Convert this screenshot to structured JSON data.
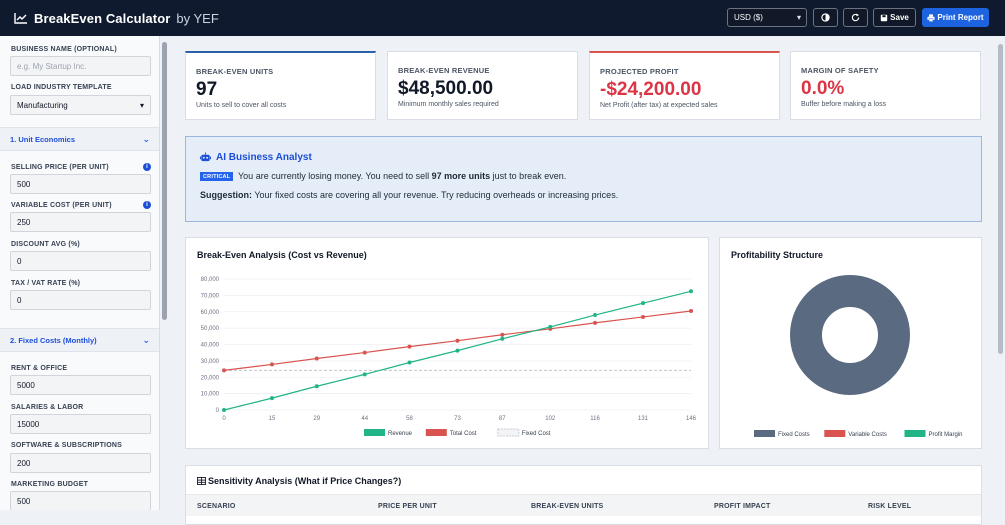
{
  "header": {
    "app_name": "BreakEven Calculator",
    "by": "by YEF",
    "currency": "USD ($)",
    "save_label": "Save",
    "print_label": "Print Report"
  },
  "sidebar": {
    "business_name_label": "BUSINESS NAME (OPTIONAL)",
    "business_name_placeholder": "e.g. My Startup Inc.",
    "template_label": "LOAD INDUSTRY TEMPLATE",
    "template_value": "Manufacturing",
    "section1": "1. Unit Economics",
    "selling_price_label": "SELLING PRICE (PER UNIT)",
    "selling_price": "500",
    "variable_cost_label": "VARIABLE COST (PER UNIT)",
    "variable_cost": "250",
    "discount_label": "DISCOUNT AVG (%)",
    "discount": "0",
    "tax_label": "TAX / VAT RATE (%)",
    "tax": "0",
    "section2": "2. Fixed Costs (Monthly)",
    "rent_label": "RENT & OFFICE",
    "rent": "5000",
    "salaries_label": "SALARIES & LABOR",
    "salaries": "15000",
    "software_label": "SOFTWARE & SUBSCRIPTIONS",
    "software": "200",
    "marketing_label": "MARKETING BUDGET",
    "marketing": "500"
  },
  "kpis": [
    {
      "label": "BREAK-EVEN UNITS",
      "value": "97",
      "sub": "Units to sell to cover all costs",
      "color": "#111827",
      "accent": "#2d5fa8"
    },
    {
      "label": "BREAK-EVEN REVENUE",
      "value": "$48,500.00",
      "sub": "Minimum monthly sales required",
      "color": "#111827",
      "accent": ""
    },
    {
      "label": "PROJECTED PROFIT",
      "value": "-$24,200.00",
      "sub": "Net Profit (after tax) at expected sales",
      "color": "#dc3545",
      "accent": "#d9534f"
    },
    {
      "label": "MARGIN OF SAFETY",
      "value": "0.0%",
      "sub": "Buffer before making a loss",
      "color": "#dc3545",
      "accent": ""
    }
  ],
  "ai": {
    "title": "AI Business Analyst",
    "badge": "CRITICAL",
    "msg_a": "You are currently losing money. You need to sell ",
    "msg_b": "97 more units",
    "msg_c": " just to break even.",
    "sug_label": "Suggestion:",
    "sug_text": " Your fixed costs are covering all your revenue. Try reducing overheads or increasing prices."
  },
  "chart_data": [
    {
      "type": "line",
      "title": "Break-Even Analysis (Cost vs Revenue)",
      "x": [
        0,
        15,
        29,
        44,
        58,
        73,
        87,
        102,
        116,
        131,
        146
      ],
      "ylim": [
        0,
        80000
      ],
      "yticks": [
        "0",
        "10,000",
        "20,000",
        "30,000",
        "40,000",
        "50,000",
        "60,000",
        "70,000",
        "80,000"
      ],
      "series": [
        {
          "name": "Revenue",
          "color": "#20b486",
          "values": [
            0,
            7250,
            14500,
            21750,
            29000,
            36250,
            43500,
            50750,
            58000,
            65250,
            72500
          ]
        },
        {
          "name": "Total Cost",
          "color": "#d9534f",
          "values": [
            24200,
            27825,
            31450,
            35075,
            38700,
            42325,
            45950,
            49575,
            53200,
            56825,
            60450
          ]
        },
        {
          "name": "Fixed Cost",
          "color": "#bfc5cc",
          "values": [
            24200,
            24200,
            24200,
            24200,
            24200,
            24200,
            24200,
            24200,
            24200,
            24200,
            24200
          ]
        }
      ],
      "grid": true,
      "legend": "bottom"
    },
    {
      "type": "pie",
      "title": "Profitability Structure",
      "categories": [
        "Fixed Costs",
        "Variable Costs",
        "Profit Margin"
      ],
      "values": [
        100,
        0,
        0
      ],
      "colors": [
        "#5a6a80",
        "#d9534f",
        "#20b486"
      ],
      "legend": "bottom"
    }
  ],
  "sensitivity": {
    "title": "Sensitivity Analysis (What if Price Changes?)",
    "columns": [
      "SCENARIO",
      "PRICE PER UNIT",
      "BREAK-EVEN UNITS",
      "PROFIT IMPACT",
      "RISK LEVEL"
    ]
  }
}
